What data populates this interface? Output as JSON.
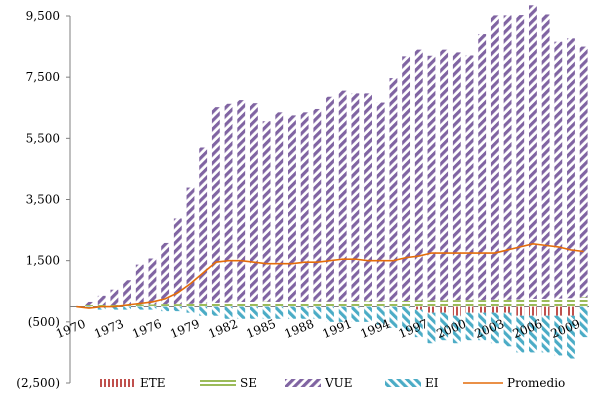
{
  "chart_data": {
    "type": "bar",
    "title": "",
    "xlabel": "",
    "ylabel": "",
    "ylim": [
      -2500,
      9500
    ],
    "yticks": [
      "(2,500)",
      "(500)",
      "1,500",
      "3,500",
      "5,500",
      "7,500",
      "9,500"
    ],
    "ytick_values": [
      -2500,
      -500,
      1500,
      3500,
      5500,
      7500,
      9500
    ],
    "x": [
      1970,
      1971,
      1972,
      1973,
      1974,
      1975,
      1976,
      1977,
      1978,
      1979,
      1980,
      1981,
      1982,
      1983,
      1984,
      1985,
      1986,
      1987,
      1988,
      1989,
      1990,
      1991,
      1992,
      1993,
      1994,
      1995,
      1996,
      1997,
      1998,
      1999,
      2000,
      2001,
      2002,
      2003,
      2004,
      2005,
      2006,
      2007,
      2008,
      2009,
      2010
    ],
    "x_tick_labels": [
      "1970",
      "1973",
      "1976",
      "1979",
      "1982",
      "1985",
      "1988",
      "1991",
      "1994",
      "1997",
      "2000",
      "2003",
      "2006",
      "2009"
    ],
    "legend_position": "bottom",
    "series": [
      {
        "name": "ETE",
        "kind": "bar",
        "color": "#c0504d",
        "values": [
          0,
          0,
          0,
          0,
          0,
          0,
          0,
          0,
          0,
          0,
          0,
          0,
          0,
          0,
          0,
          0,
          0,
          0,
          0,
          0,
          0,
          0,
          0,
          0,
          0,
          0,
          0,
          -100,
          -200,
          -200,
          -300,
          -200,
          -200,
          -200,
          -200,
          -300,
          -300,
          -300,
          -300,
          -300,
          0
        ]
      },
      {
        "name": "SE",
        "kind": "bar",
        "color": "#9bbb59",
        "values": [
          0,
          50,
          50,
          50,
          60,
          70,
          70,
          80,
          80,
          90,
          100,
          120,
          130,
          150,
          150,
          160,
          150,
          150,
          150,
          160,
          160,
          160,
          170,
          170,
          170,
          170,
          180,
          200,
          200,
          200,
          210,
          210,
          210,
          220,
          220,
          230,
          250,
          250,
          260,
          270,
          300
        ]
      },
      {
        "name": "VUE",
        "kind": "bar",
        "color": "#8064a2",
        "values": [
          0,
          100,
          300,
          500,
          800,
          1300,
          1500,
          2000,
          2800,
          3800,
          5100,
          6400,
          6500,
          6600,
          6500,
          5900,
          6200,
          6100,
          6200,
          6300,
          6700,
          6900,
          6800,
          6800,
          6500,
          7300,
          8000,
          8200,
          8000,
          8200,
          8100,
          8000,
          8700,
          9300,
          9300,
          9300,
          9600,
          9300,
          8400,
          8500,
          8200
        ]
      },
      {
        "name": "EI",
        "kind": "bar",
        "color": "#4bacc6",
        "values": [
          0,
          -50,
          -100,
          -100,
          -100,
          -100,
          -100,
          -150,
          -150,
          -200,
          -300,
          -300,
          -400,
          -400,
          -400,
          -400,
          -400,
          -400,
          -400,
          -400,
          -500,
          -500,
          -500,
          -500,
          -600,
          -700,
          -800,
          -900,
          -1000,
          -900,
          -900,
          -900,
          -900,
          -1000,
          -1100,
          -1200,
          -1200,
          -1200,
          -1300,
          -1400,
          -1000
        ]
      },
      {
        "name": "Promedio",
        "kind": "line",
        "color": "#e46c0a",
        "values": [
          0,
          -50,
          0,
          0,
          50,
          100,
          150,
          250,
          450,
          750,
          1100,
          1450,
          1500,
          1500,
          1450,
          1400,
          1400,
          1400,
          1450,
          1450,
          1500,
          1550,
          1550,
          1500,
          1500,
          1500,
          1600,
          1650,
          1750,
          1750,
          1750,
          1750,
          1750,
          1750,
          1850,
          1950,
          2050,
          2000,
          1950,
          1850,
          1800
        ]
      }
    ]
  }
}
